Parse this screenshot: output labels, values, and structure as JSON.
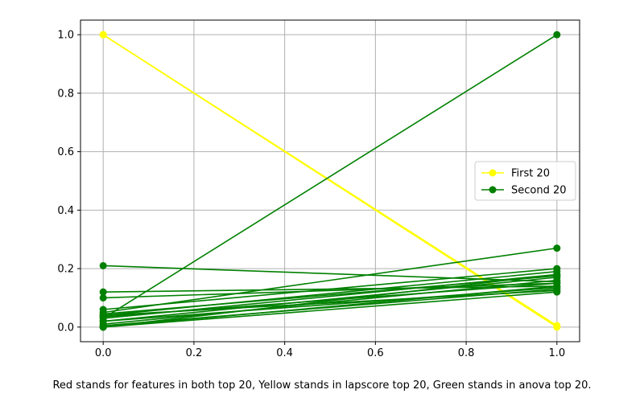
{
  "chart_data": {
    "type": "line",
    "xlim": [
      -0.05,
      1.05
    ],
    "ylim": [
      -0.05,
      1.05
    ],
    "x_ticks": [
      "0.0",
      "0.2",
      "0.4",
      "0.6",
      "0.8",
      "1.0"
    ],
    "y_ticks": [
      "0.0",
      "0.2",
      "0.4",
      "0.6",
      "0.8",
      "1.0"
    ],
    "grid": true,
    "legend_position": "center-right",
    "series": [
      {
        "name": "First 20",
        "color": "#ffff00",
        "marker": "circle",
        "lines": [
          [
            [
              0,
              1.0
            ],
            [
              1,
              0.0
            ]
          ],
          [
            [
              0,
              1.0
            ],
            [
              1,
              0.005
            ]
          ]
        ]
      },
      {
        "name": "Second 20",
        "color": "#008000",
        "marker": "circle",
        "lines": [
          [
            [
              0,
              0.03
            ],
            [
              1,
              1.0
            ]
          ],
          [
            [
              0,
              0.21
            ],
            [
              1,
              0.155
            ]
          ],
          [
            [
              0,
              0.05
            ],
            [
              1,
              0.27
            ]
          ],
          [
            [
              0,
              0.12
            ],
            [
              1,
              0.14
            ]
          ],
          [
            [
              0,
              0.1
            ],
            [
              1,
              0.15
            ]
          ],
          [
            [
              0,
              0.06
            ],
            [
              1,
              0.2
            ]
          ],
          [
            [
              0,
              0.04
            ],
            [
              1,
              0.19
            ]
          ],
          [
            [
              0,
              0.03
            ],
            [
              1,
              0.18
            ]
          ],
          [
            [
              0,
              0.02
            ],
            [
              1,
              0.17
            ]
          ],
          [
            [
              0,
              0.01
            ],
            [
              1,
              0.16
            ]
          ],
          [
            [
              0,
              0.0
            ],
            [
              1,
              0.14
            ]
          ],
          [
            [
              0,
              0.005
            ],
            [
              1,
              0.13
            ]
          ],
          [
            [
              0,
              0.0
            ],
            [
              1,
              0.12
            ]
          ],
          [
            [
              0,
              0.04
            ],
            [
              1,
              0.125
            ]
          ],
          [
            [
              0,
              0.035
            ],
            [
              1,
              0.15
            ]
          ],
          [
            [
              0,
              0.0
            ],
            [
              1,
              0.18
            ]
          ],
          [
            [
              0,
              0.02
            ],
            [
              1,
              0.135
            ]
          ],
          [
            [
              0,
              0.045
            ],
            [
              1,
              0.175
            ]
          ]
        ]
      }
    ]
  },
  "caption": "Red stands for features in both top 20, Yellow stands in lapscore top 20, Green stands in anova top 20."
}
